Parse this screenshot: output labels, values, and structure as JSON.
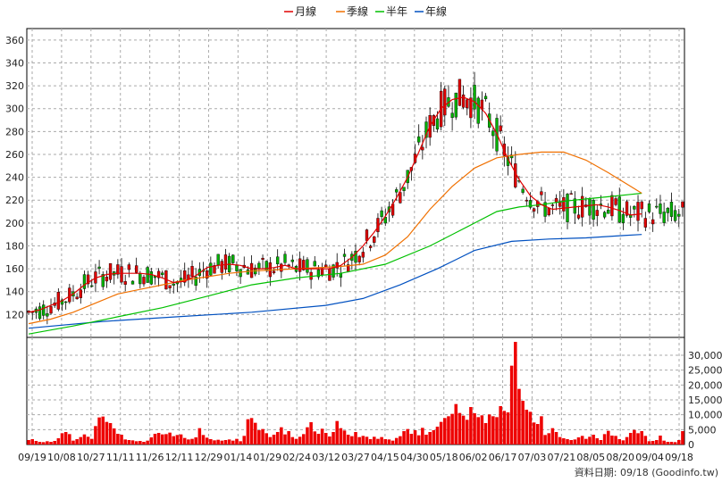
{
  "chart_data": [
    {
      "type": "line",
      "title": "",
      "legend": {
        "placement": "top-center",
        "items": [
          {
            "label": "月線",
            "color": "#e00000"
          },
          {
            "label": "季線",
            "color": "#f07000"
          },
          {
            "label": "半年",
            "color": "#00c000"
          },
          {
            "label": "年線",
            "color": "#0050c0"
          }
        ]
      },
      "ylim": [
        100,
        370
      ],
      "y_ticks": [
        120,
        140,
        160,
        180,
        200,
        220,
        240,
        260,
        280,
        300,
        320,
        340,
        360
      ],
      "grid": true,
      "candles": {
        "up_color": "#e00000",
        "down_color": "#00b000"
      },
      "series": [
        {
          "name": "月線",
          "color": "#e00000",
          "points": [
            [
              0,
              122
            ],
            [
              3,
              124
            ],
            [
              6,
              128
            ],
            [
              9,
              132
            ],
            [
              12,
              138
            ],
            [
              15,
              146
            ],
            [
              18,
              152
            ],
            [
              21,
              155
            ],
            [
              24,
              156
            ],
            [
              27,
              156
            ],
            [
              30,
              156
            ],
            [
              33,
              155
            ],
            [
              36,
              152
            ],
            [
              39,
              148
            ],
            [
              42,
              149
            ],
            [
              45,
              154
            ],
            [
              48,
              161
            ],
            [
              51,
              163
            ],
            [
              54,
              164
            ],
            [
              57,
              163
            ],
            [
              60,
              160
            ],
            [
              63,
              160
            ],
            [
              66,
              161
            ],
            [
              69,
              163
            ],
            [
              72,
              160
            ],
            [
              75,
              160
            ],
            [
              78,
              160
            ],
            [
              81,
              160
            ],
            [
              84,
              163
            ],
            [
              87,
              170
            ],
            [
              90,
              180
            ],
            [
              93,
              192
            ],
            [
              96,
              206
            ],
            [
              99,
              222
            ],
            [
              102,
              240
            ],
            [
              105,
              262
            ],
            [
              108,
              285
            ],
            [
              111,
              300
            ],
            [
              114,
              308
            ],
            [
              117,
              310
            ],
            [
              120,
              306
            ],
            [
              123,
              296
            ],
            [
              126,
              278
            ],
            [
              129,
              256
            ],
            [
              132,
              238
            ],
            [
              135,
              224
            ],
            [
              138,
              216
            ],
            [
              141,
              212
            ],
            [
              144,
              213
            ],
            [
              147,
              214
            ],
            [
              150,
              215
            ],
            [
              153,
              216
            ],
            [
              156,
              214
            ],
            [
              159,
              211
            ],
            [
              162,
              207
            ],
            [
              165,
              208
            ]
          ]
        },
        {
          "name": "季線",
          "color": "#f07000",
          "points": [
            [
              0,
              112
            ],
            [
              6,
              116
            ],
            [
              12,
              122
            ],
            [
              18,
              130
            ],
            [
              24,
              138
            ],
            [
              30,
              142
            ],
            [
              36,
              146
            ],
            [
              42,
              150
            ],
            [
              48,
              153
            ],
            [
              54,
              156
            ],
            [
              60,
              158
            ],
            [
              66,
              159
            ],
            [
              72,
              160
            ],
            [
              78,
              161
            ],
            [
              84,
              162
            ],
            [
              90,
              164
            ],
            [
              96,
              172
            ],
            [
              102,
              188
            ],
            [
              108,
              212
            ],
            [
              114,
              232
            ],
            [
              120,
              248
            ],
            [
              126,
              257
            ],
            [
              132,
              260
            ],
            [
              138,
              262
            ],
            [
              144,
              262
            ],
            [
              150,
              255
            ],
            [
              156,
              244
            ],
            [
              162,
              232
            ],
            [
              165,
              226
            ]
          ]
        },
        {
          "name": "半年",
          "color": "#00c000",
          "points": [
            [
              0,
              103
            ],
            [
              12,
              110
            ],
            [
              24,
              118
            ],
            [
              36,
              126
            ],
            [
              48,
              136
            ],
            [
              60,
              146
            ],
            [
              72,
              152
            ],
            [
              84,
              156
            ],
            [
              96,
              164
            ],
            [
              108,
              180
            ],
            [
              120,
              200
            ],
            [
              126,
              210
            ],
            [
              132,
              214
            ],
            [
              138,
              216
            ],
            [
              144,
              219
            ],
            [
              150,
              221
            ],
            [
              156,
              223
            ],
            [
              162,
              225
            ],
            [
              165,
              226
            ]
          ]
        },
        {
          "name": "年線",
          "color": "#0050c0",
          "points": [
            [
              0,
              108
            ],
            [
              20,
              114
            ],
            [
              40,
              118
            ],
            [
              60,
              122
            ],
            [
              80,
              128
            ],
            [
              90,
              134
            ],
            [
              100,
              146
            ],
            [
              110,
              160
            ],
            [
              120,
              176
            ],
            [
              130,
              184
            ],
            [
              140,
              186
            ],
            [
              150,
              187
            ],
            [
              160,
              189
            ],
            [
              165,
              190
            ]
          ]
        }
      ]
    },
    {
      "type": "bar",
      "title": "",
      "ylim": [
        0,
        36000
      ],
      "y_ticks": [
        "0",
        "5,000",
        "10,000",
        "15,000",
        "20,000",
        "25,000",
        "30,000"
      ],
      "grid": true,
      "x_ticks": [
        "09/19",
        "10/08",
        "10/27",
        "11/11",
        "11/26",
        "12/11",
        "12/29",
        "01/14",
        "01/29",
        "02/24",
        "03/12",
        "03/27",
        "04/15",
        "04/30",
        "05/18",
        "06/02",
        "06/17",
        "07/03",
        "07/21",
        "08/05",
        "08/20",
        "09/04",
        "09/18"
      ],
      "values": [
        1500,
        1800,
        1200,
        900,
        800,
        1100,
        900,
        1200,
        2100,
        3800,
        4200,
        3500,
        1300,
        1800,
        2500,
        3400,
        2600,
        1900,
        6200,
        9100,
        9400,
        7600,
        7200,
        5400,
        3600,
        3300,
        1700,
        1500,
        1400,
        1100,
        1200,
        900,
        1300,
        2400,
        3600,
        3900,
        3400,
        3500,
        4000,
        2800,
        3200,
        3400,
        2200,
        1700,
        1900,
        2400,
        5500,
        3200,
        2300,
        1800,
        1400,
        1600,
        1300,
        1500,
        1700,
        1300,
        1900,
        1100,
        2900,
        8500,
        8900,
        7300,
        4800,
        5200,
        3800,
        2500,
        3300,
        4200,
        5800,
        3400,
        4500,
        2500,
        1900,
        2600,
        3500,
        5800,
        7500,
        4400,
        3600,
        5300,
        3900,
        2700,
        4200,
        7900,
        5500,
        4700,
        3300,
        2800,
        4200,
        2500,
        2900,
        2600,
        1800,
        2600,
        1900,
        2500,
        1800,
        1700,
        1300,
        2200,
        2800,
        4500,
        5200,
        3600,
        4800,
        3100,
        5600,
        3300,
        4200,
        4800,
        6000,
        7600,
        8900,
        9500,
        10300,
        13600,
        10600,
        9700,
        8300,
        12600,
        10500,
        9200,
        9800,
        7200,
        10100,
        9500,
        9200,
        12900,
        11300,
        10800,
        26500,
        34500,
        18700,
        14700,
        11700,
        11000,
        7400,
        6900,
        9500,
        3200,
        3800,
        5500,
        4200,
        2500,
        2100,
        1800,
        1500,
        1700,
        2400,
        2900,
        1900,
        2600,
        3300,
        2100,
        1500,
        3500,
        4600,
        3000,
        2900,
        1800,
        1400,
        2500,
        3900,
        4900,
        3800,
        4500,
        2900,
        1100,
        1200,
        1500,
        3000,
        1300,
        900,
        900,
        800,
        1500,
        4500
      ]
    }
  ],
  "footer": {
    "label": "資料日期: 09/18  (Goodinfo.tw)"
  }
}
